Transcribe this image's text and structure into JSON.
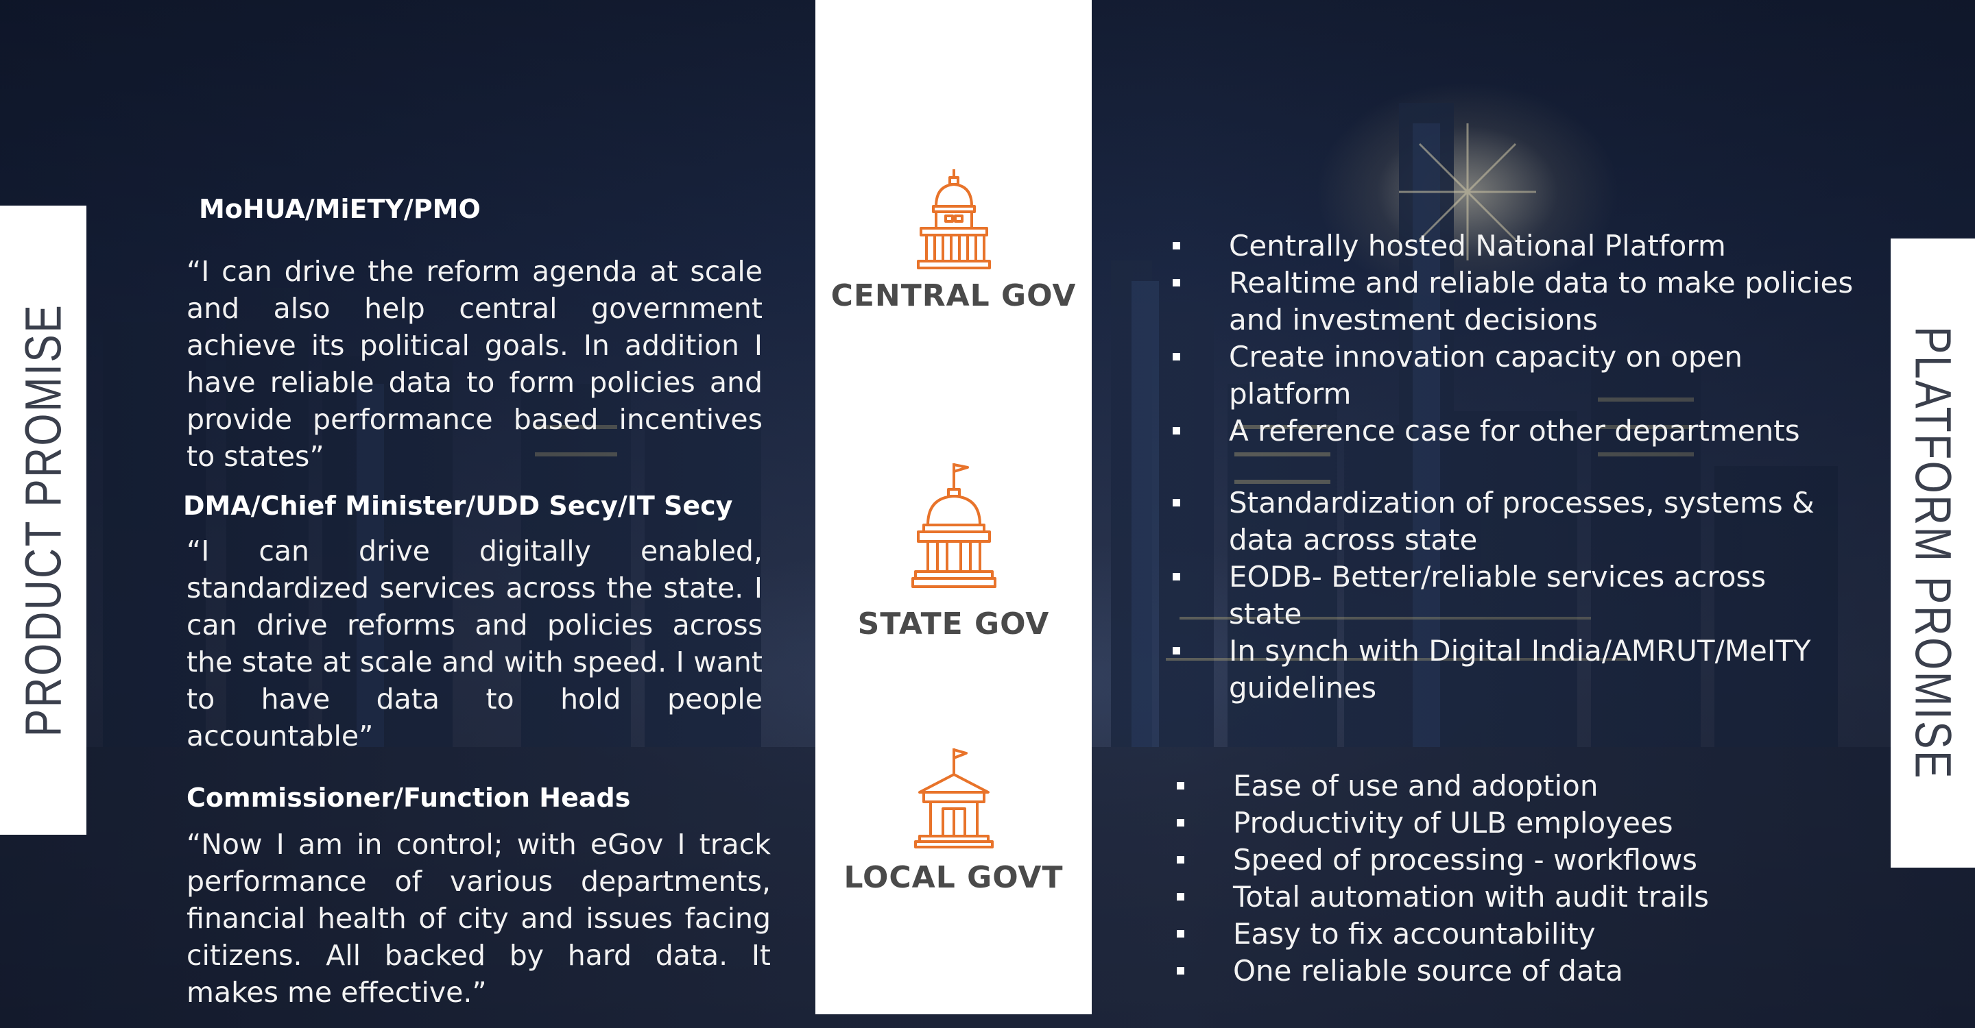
{
  "left_tab": {
    "label": "PRODUCT PROMISE"
  },
  "right_tab": {
    "label": "PLATFORM PROMISE"
  },
  "personas": [
    {
      "title": "MoHUA/MiETY/PMO",
      "quote": "“I can drive the reform agenda at scale and also help central government achieve its political goals. In addition I have reliable data to form policies and provide performance based incentives to states”"
    },
    {
      "title": "DMA/Chief Minister/UDD Secy/IT Secy",
      "quote": "“I can drive digitally enabled, standardized services across the state. I can drive reforms and policies across the state at scale and with speed. I want to have data to hold people accountable”"
    },
    {
      "title": "Commissioner/Function Heads",
      "quote": "“Now I am in control; with eGov I track performance of various departments, financial health of city and  issues facing citizens. All backed by hard data. It makes me effective.”"
    }
  ],
  "levels": [
    {
      "label": "CENTRAL GOV",
      "icon": "capitol-dome-icon",
      "icon_color": "#e8732a"
    },
    {
      "label": "STATE GOV",
      "icon": "state-capitol-icon",
      "icon_color": "#e8732a"
    },
    {
      "label": "LOCAL GOVT",
      "icon": "town-hall-icon",
      "icon_color": "#e8732a"
    }
  ],
  "promises": [
    {
      "items": [
        "Centrally hosted National Platform",
        "Realtime and reliable data to make policies and investment decisions",
        "Create innovation capacity on open platform",
        "A reference case for other departments"
      ]
    },
    {
      "items": [
        "Standardization of  processes, systems & data across state",
        "EODB- Better/reliable  services across state",
        "In synch with Digital India/AMRUT/MeITY guidelines"
      ]
    },
    {
      "items": [
        "Ease of use and adoption",
        "Productivity of ULB employees",
        "Speed of processing - workflows",
        "Total automation with audit trails",
        "Easy to fix accountability",
        "One reliable source of data"
      ]
    }
  ],
  "colors": {
    "accent_orange": "#e8732a",
    "label_gray": "#4a4a4a",
    "tab_text": "#3a3f4c"
  }
}
